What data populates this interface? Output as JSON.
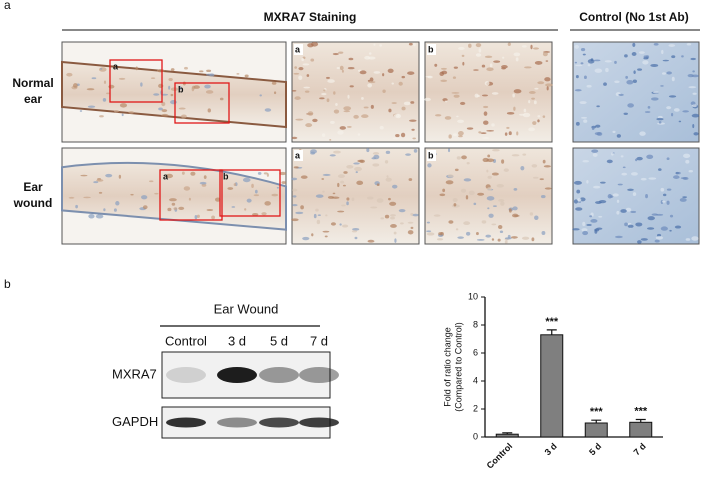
{
  "panel_a": {
    "label": "a",
    "staining_title": "MXRA7 Staining",
    "control_title": "Control (No 1st Ab)",
    "rows": [
      {
        "label": [
          "Normal",
          "ear"
        ],
        "box_labels": [
          "a",
          "b"
        ],
        "zoom_labels": [
          "a",
          "b"
        ]
      },
      {
        "label": [
          "Ear",
          "wound"
        ],
        "box_labels": [
          "a",
          "b"
        ],
        "zoom_labels": [
          "a",
          "b"
        ]
      }
    ]
  },
  "panel_b": {
    "label": "b",
    "blot": {
      "title": "Ear Wound",
      "lanes": [
        "Control",
        "3 d",
        "5 d",
        "7 d"
      ],
      "rows": [
        "MXRA7",
        "GAPDH"
      ]
    }
  },
  "chart_data": {
    "type": "bar",
    "categories": [
      "Control",
      "3 d",
      "5 d",
      "7 d"
    ],
    "values": [
      0.2,
      7.3,
      1.0,
      1.05
    ],
    "errors": [
      0.1,
      0.35,
      0.2,
      0.2
    ],
    "annotations": [
      null,
      "***",
      "***",
      "***"
    ],
    "ylabel": [
      "Fold of ratio change",
      "(Compared to Control)"
    ],
    "ylim": [
      0,
      10
    ],
    "yticks": [
      0,
      2,
      4,
      6,
      8,
      10
    ],
    "color": "#7f7f7f"
  }
}
